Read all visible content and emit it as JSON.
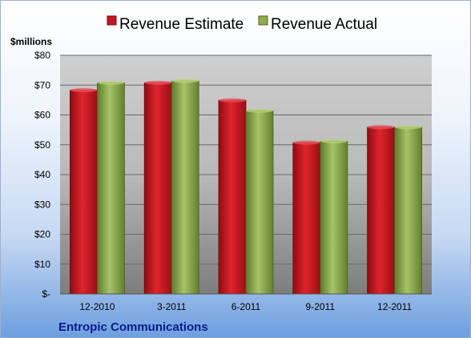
{
  "chart_data": {
    "type": "bar",
    "categories": [
      "12-2010",
      "3-2011",
      "6-2011",
      "9-2011",
      "12-2011"
    ],
    "series": [
      {
        "name": "Revenue Estimate",
        "values": [
          68.3,
          70.8,
          64.9,
          50.7,
          55.9
        ]
      },
      {
        "name": "Revenue Actual",
        "values": [
          70.8,
          71.4,
          61.4,
          51.2,
          55.9
        ]
      }
    ],
    "ylim": [
      0,
      80
    ],
    "y_ticks": [
      {
        "value": 80,
        "label": "$80"
      },
      {
        "value": 70,
        "label": "$70"
      },
      {
        "value": 60,
        "label": "$60"
      },
      {
        "value": 50,
        "label": "$50"
      },
      {
        "value": 40,
        "label": "$40"
      },
      {
        "value": 30,
        "label": "$30"
      },
      {
        "value": 20,
        "label": "$20"
      },
      {
        "value": 10,
        "label": "$10"
      },
      {
        "value": 0,
        "label": "$-"
      }
    ],
    "unit_label": "$millions",
    "company": "Entropic Communications",
    "grid": true,
    "legend_position": "top",
    "colors": {
      "estimate": "#c8141e",
      "actual": "#8fae4e"
    }
  }
}
